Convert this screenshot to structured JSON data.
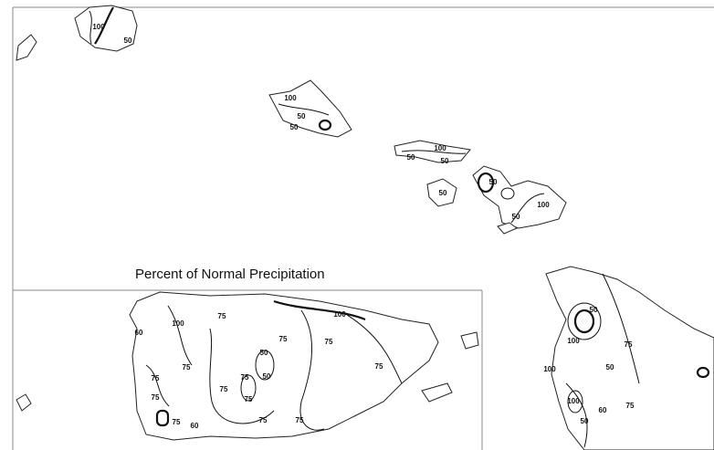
{
  "title": "Percent of Normal Precipitation",
  "contour_labels": [
    100,
    50,
    100,
    50,
    50,
    100,
    50,
    50,
    100,
    50,
    50,
    50,
    100,
    75,
    100,
    75,
    75,
    50,
    50,
    75,
    75,
    75,
    75,
    75,
    60,
    75,
    75,
    75,
    75,
    75,
    60,
    100,
    50,
    75,
    50,
    100,
    60,
    75,
    100,
    50
  ]
}
